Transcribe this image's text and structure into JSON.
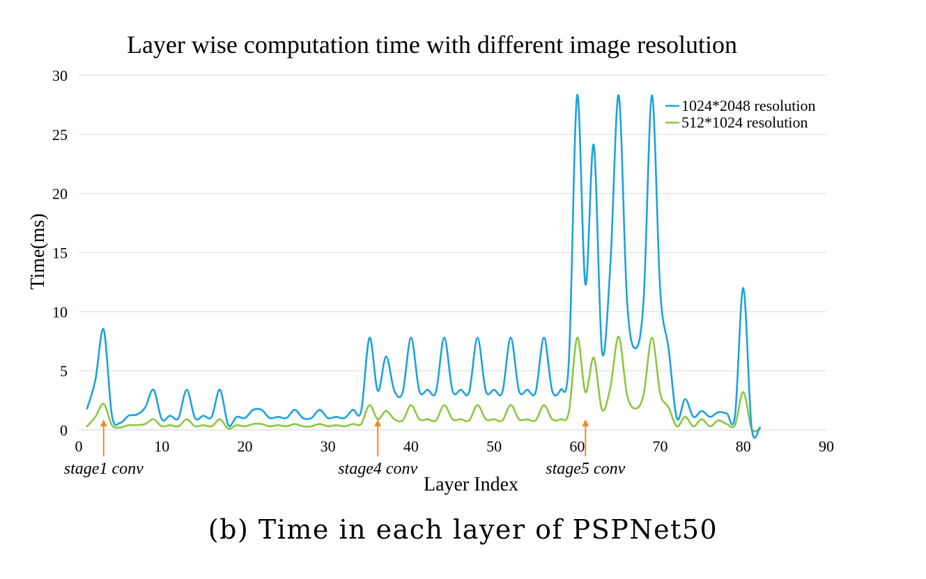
{
  "caption": "(b) Time in each layer of PSPNet50",
  "chart_data": {
    "type": "line",
    "title": "Layer wise computation time with different image resolution",
    "xlabel": "Layer Index",
    "ylabel": "Time(ms)",
    "xlim": [
      0,
      90
    ],
    "ylim": [
      0,
      30
    ],
    "xticks": [
      0,
      10,
      20,
      30,
      40,
      50,
      60,
      70,
      80,
      90
    ],
    "yticks": [
      0,
      5,
      10,
      15,
      20,
      25,
      30
    ],
    "grid": true,
    "legend_position": "top-right",
    "x": [
      1,
      2,
      3,
      4,
      5,
      6,
      7,
      8,
      9,
      10,
      11,
      12,
      13,
      14,
      15,
      16,
      17,
      18,
      19,
      20,
      21,
      22,
      23,
      24,
      25,
      26,
      27,
      28,
      29,
      30,
      31,
      32,
      33,
      34,
      35,
      36,
      37,
      38,
      39,
      40,
      41,
      42,
      43,
      44,
      45,
      46,
      47,
      48,
      49,
      50,
      51,
      52,
      53,
      54,
      55,
      56,
      57,
      58,
      59,
      60,
      61,
      62,
      63,
      64,
      65,
      66,
      67,
      68,
      69,
      70,
      71,
      72,
      73,
      74,
      75,
      76,
      77,
      78,
      79,
      80,
      81,
      82
    ],
    "series": [
      {
        "name": "1024*2048 resolution",
        "color": "#1ba1e2",
        "values": [
          1.8,
          4.2,
          8.5,
          1.2,
          0.6,
          1.2,
          1.3,
          1.9,
          3.4,
          0.9,
          1.2,
          1.0,
          3.4,
          1.0,
          1.2,
          1.1,
          3.4,
          0.4,
          1.1,
          1.0,
          1.7,
          1.7,
          1.0,
          1.1,
          1.0,
          1.7,
          1.0,
          1.0,
          1.7,
          1.0,
          1.1,
          1.0,
          1.7,
          1.6,
          7.8,
          3.3,
          6.2,
          3.3,
          3.2,
          7.8,
          3.3,
          3.4,
          3.2,
          7.8,
          3.3,
          3.4,
          3.2,
          7.8,
          3.3,
          3.4,
          3.2,
          7.8,
          3.3,
          3.4,
          3.2,
          7.8,
          3.3,
          3.4,
          5.8,
          28.3,
          12.3,
          24.1,
          6.6,
          14.0,
          28.3,
          11.0,
          6.9,
          11.0,
          28.3,
          11.8,
          6.9,
          1.0,
          2.6,
          1.1,
          1.6,
          1.1,
          1.5,
          1.4,
          1.2,
          12.0,
          0.2,
          0.2
        ]
      },
      {
        "name": "512*1024 resolution",
        "color": "#8cc63f",
        "values": [
          0.3,
          1.1,
          2.2,
          0.4,
          0.2,
          0.4,
          0.4,
          0.5,
          0.9,
          0.3,
          0.4,
          0.3,
          0.9,
          0.3,
          0.4,
          0.3,
          0.9,
          0.1,
          0.4,
          0.3,
          0.5,
          0.5,
          0.3,
          0.4,
          0.3,
          0.5,
          0.3,
          0.3,
          0.5,
          0.3,
          0.4,
          0.3,
          0.5,
          0.5,
          2.1,
          0.9,
          1.6,
          0.9,
          0.8,
          2.1,
          0.9,
          0.9,
          0.8,
          2.1,
          0.9,
          0.9,
          0.8,
          2.1,
          0.9,
          0.9,
          0.8,
          2.1,
          0.9,
          0.9,
          0.8,
          2.1,
          0.9,
          0.9,
          1.5,
          7.8,
          3.2,
          6.1,
          1.7,
          3.6,
          7.9,
          3.0,
          1.8,
          3.0,
          7.8,
          3.1,
          1.9,
          0.3,
          1.1,
          0.3,
          0.9,
          0.3,
          0.8,
          0.5,
          0.4,
          3.2,
          0.1,
          0.1
        ]
      }
    ],
    "annotations": [
      {
        "text": "stage1 conv",
        "x": 3,
        "arrow_color": "#f08a24"
      },
      {
        "text": "stage4 conv",
        "x": 36,
        "arrow_color": "#f08a24"
      },
      {
        "text": "stage5 conv",
        "x": 61,
        "arrow_color": "#f08a24"
      }
    ]
  }
}
